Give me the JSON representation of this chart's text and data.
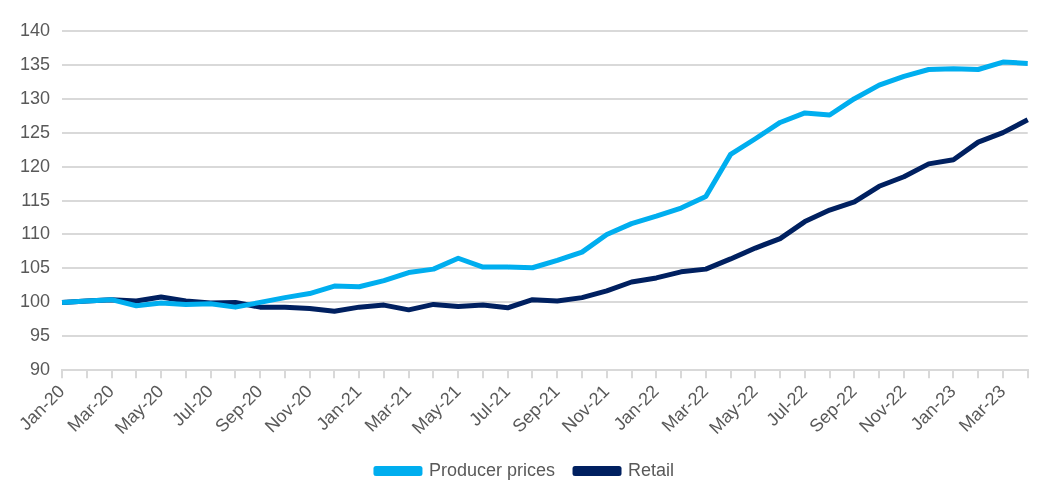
{
  "chart_data": {
    "type": "line",
    "categories": [
      "Jan-20",
      null,
      "Mar-20",
      null,
      "May-20",
      null,
      "Jul-20",
      null,
      "Sep-20",
      null,
      "Nov-20",
      null,
      "Jan-21",
      null,
      "Mar-21",
      null,
      "May-21",
      null,
      "Jul-21",
      null,
      "Sep-21",
      null,
      "Nov-21",
      null,
      "Jan-22",
      null,
      "Mar-22",
      null,
      "May-22",
      null,
      "Jul-22",
      null,
      "Sep-22",
      null,
      "Nov-22",
      null,
      "Jan-23",
      null,
      "Mar-23",
      null
    ],
    "series": [
      {
        "name": "Producer prices",
        "color": "#00aeef",
        "values": [
          100,
          100.2,
          100.4,
          99.5,
          99.9,
          99.7,
          99.8,
          99.3,
          100.0,
          100.7,
          101.3,
          102.4,
          102.3,
          103.2,
          104.4,
          104.9,
          106.5,
          105.2,
          105.2,
          105.1,
          106.2,
          107.4,
          110.0,
          111.6,
          112.7,
          113.9,
          115.6,
          121.8,
          124.1,
          126.5,
          127.9,
          127.6,
          130.0,
          132.0,
          133.3,
          134.3,
          134.4,
          134.3,
          135.4,
          135.2
        ]
      },
      {
        "name": "Retail",
        "color": "#002060",
        "values": [
          100,
          100.2,
          100.4,
          100.2,
          100.8,
          100.2,
          99.9,
          100.0,
          99.3,
          99.3,
          99.1,
          98.7,
          99.3,
          99.6,
          98.9,
          99.7,
          99.4,
          99.6,
          99.2,
          100.4,
          100.2,
          100.7,
          101.7,
          103.0,
          103.6,
          104.5,
          104.9,
          106.4,
          108.0,
          109.4,
          111.9,
          113.6,
          114.8,
          117.1,
          118.5,
          120.4,
          121.0,
          123.6,
          125.0,
          126.9
        ]
      }
    ],
    "ylim": [
      90,
      140
    ],
    "yticks": [
      90,
      95,
      100,
      105,
      110,
      115,
      120,
      125,
      130,
      135,
      140
    ],
    "grid": "y",
    "legend": "bottom",
    "marker": "none",
    "line_style": "solid"
  }
}
